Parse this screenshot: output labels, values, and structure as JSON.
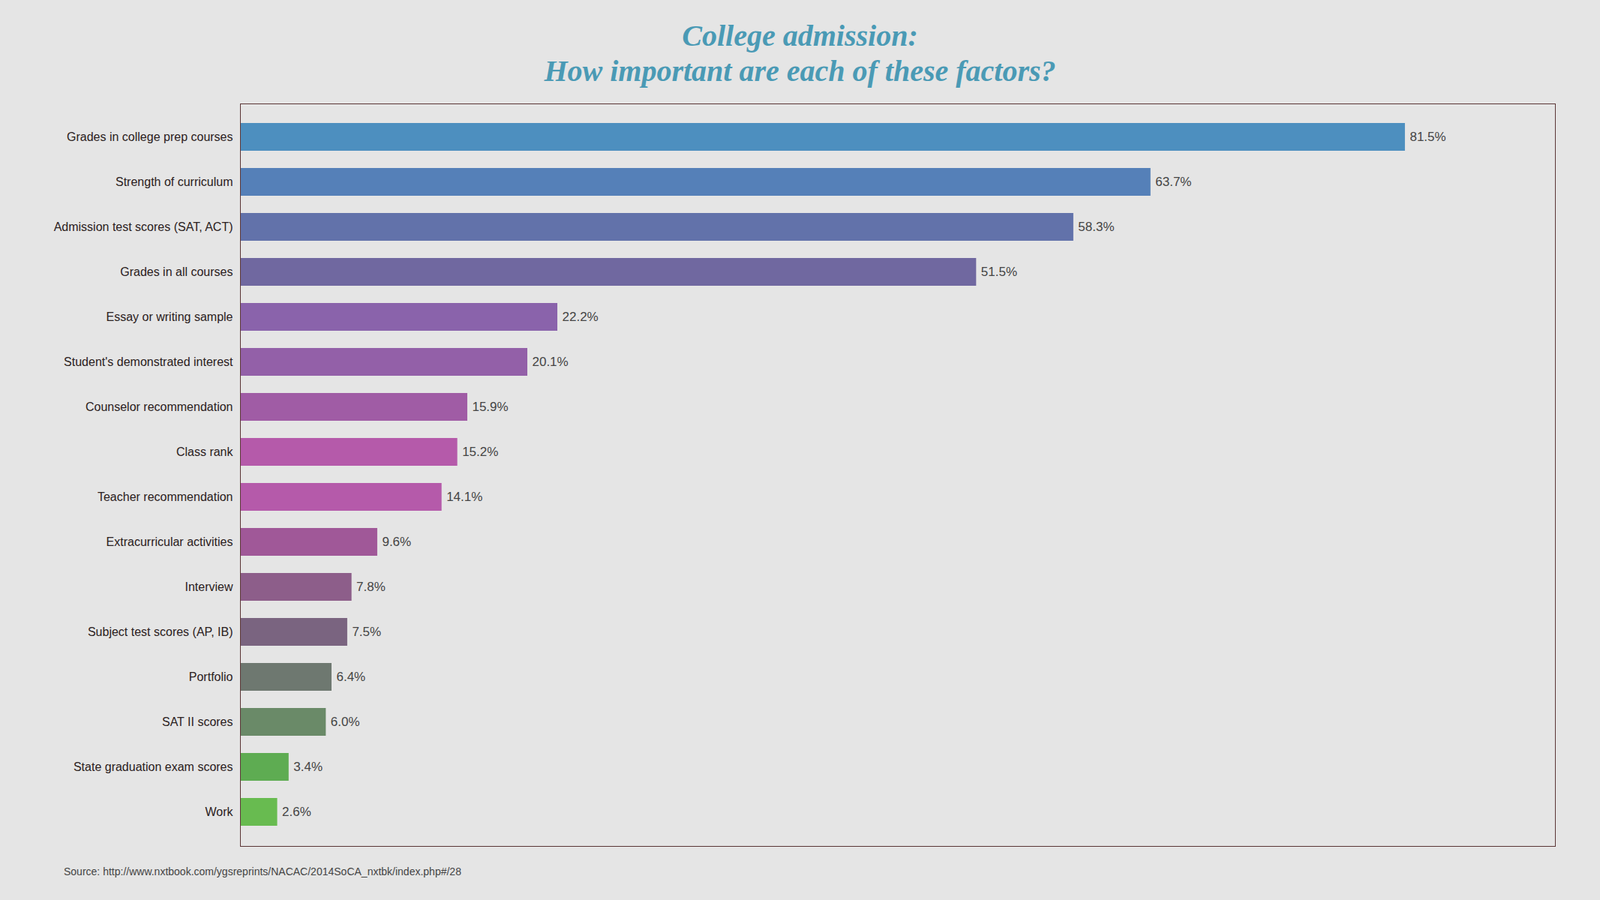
{
  "chart_data": {
    "type": "bar",
    "orientation": "horizontal",
    "title": "College admission:",
    "subtitle": "How important are each of these factors?",
    "caption": "Source: http://www.nxtbook.com/ygsreprints/NACAC/2014SoCA_nxtbk/index.php#/28",
    "categories": [
      "Grades in college prep courses",
      "Strength of curriculum",
      "Admission test scores (SAT, ACT)",
      "Grades in all courses",
      "Essay or writing sample",
      "Student's demonstrated interest",
      "Counselor recommendation",
      "Class rank",
      "Teacher recommendation",
      "Extracurricular activities",
      "Interview",
      "Subject test scores (AP, IB)",
      "Portfolio",
      "SAT II scores",
      "State graduation exam scores",
      "Work"
    ],
    "values": [
      81.5,
      63.7,
      58.3,
      51.5,
      22.2,
      20.1,
      15.9,
      15.2,
      14.1,
      9.6,
      7.8,
      7.5,
      6.4,
      6.0,
      3.4,
      2.6
    ],
    "value_labels": [
      "81.5%",
      "63.7%",
      "58.3%",
      "51.5%",
      "22.2%",
      "20.1%",
      "15.9%",
      "15.2%",
      "14.1%",
      "9.6%",
      "7.8%",
      "7.5%",
      "6.4%",
      "6.0%",
      "3.4%",
      "2.6%"
    ],
    "colors": [
      "#4d8fbf",
      "#5580b8",
      "#6272aa",
      "#7068a0",
      "#8a63ab",
      "#9360a8",
      "#a05ca5",
      "#b55aaa",
      "#b55aaa",
      "#a05898",
      "#8d5e8a",
      "#7a6480",
      "#6e7870",
      "#6a8a68",
      "#5eac52",
      "#68bb50"
    ],
    "xlim": [
      0,
      92
    ],
    "tick_labels": "y",
    "grid": false,
    "data_labels": true
  }
}
